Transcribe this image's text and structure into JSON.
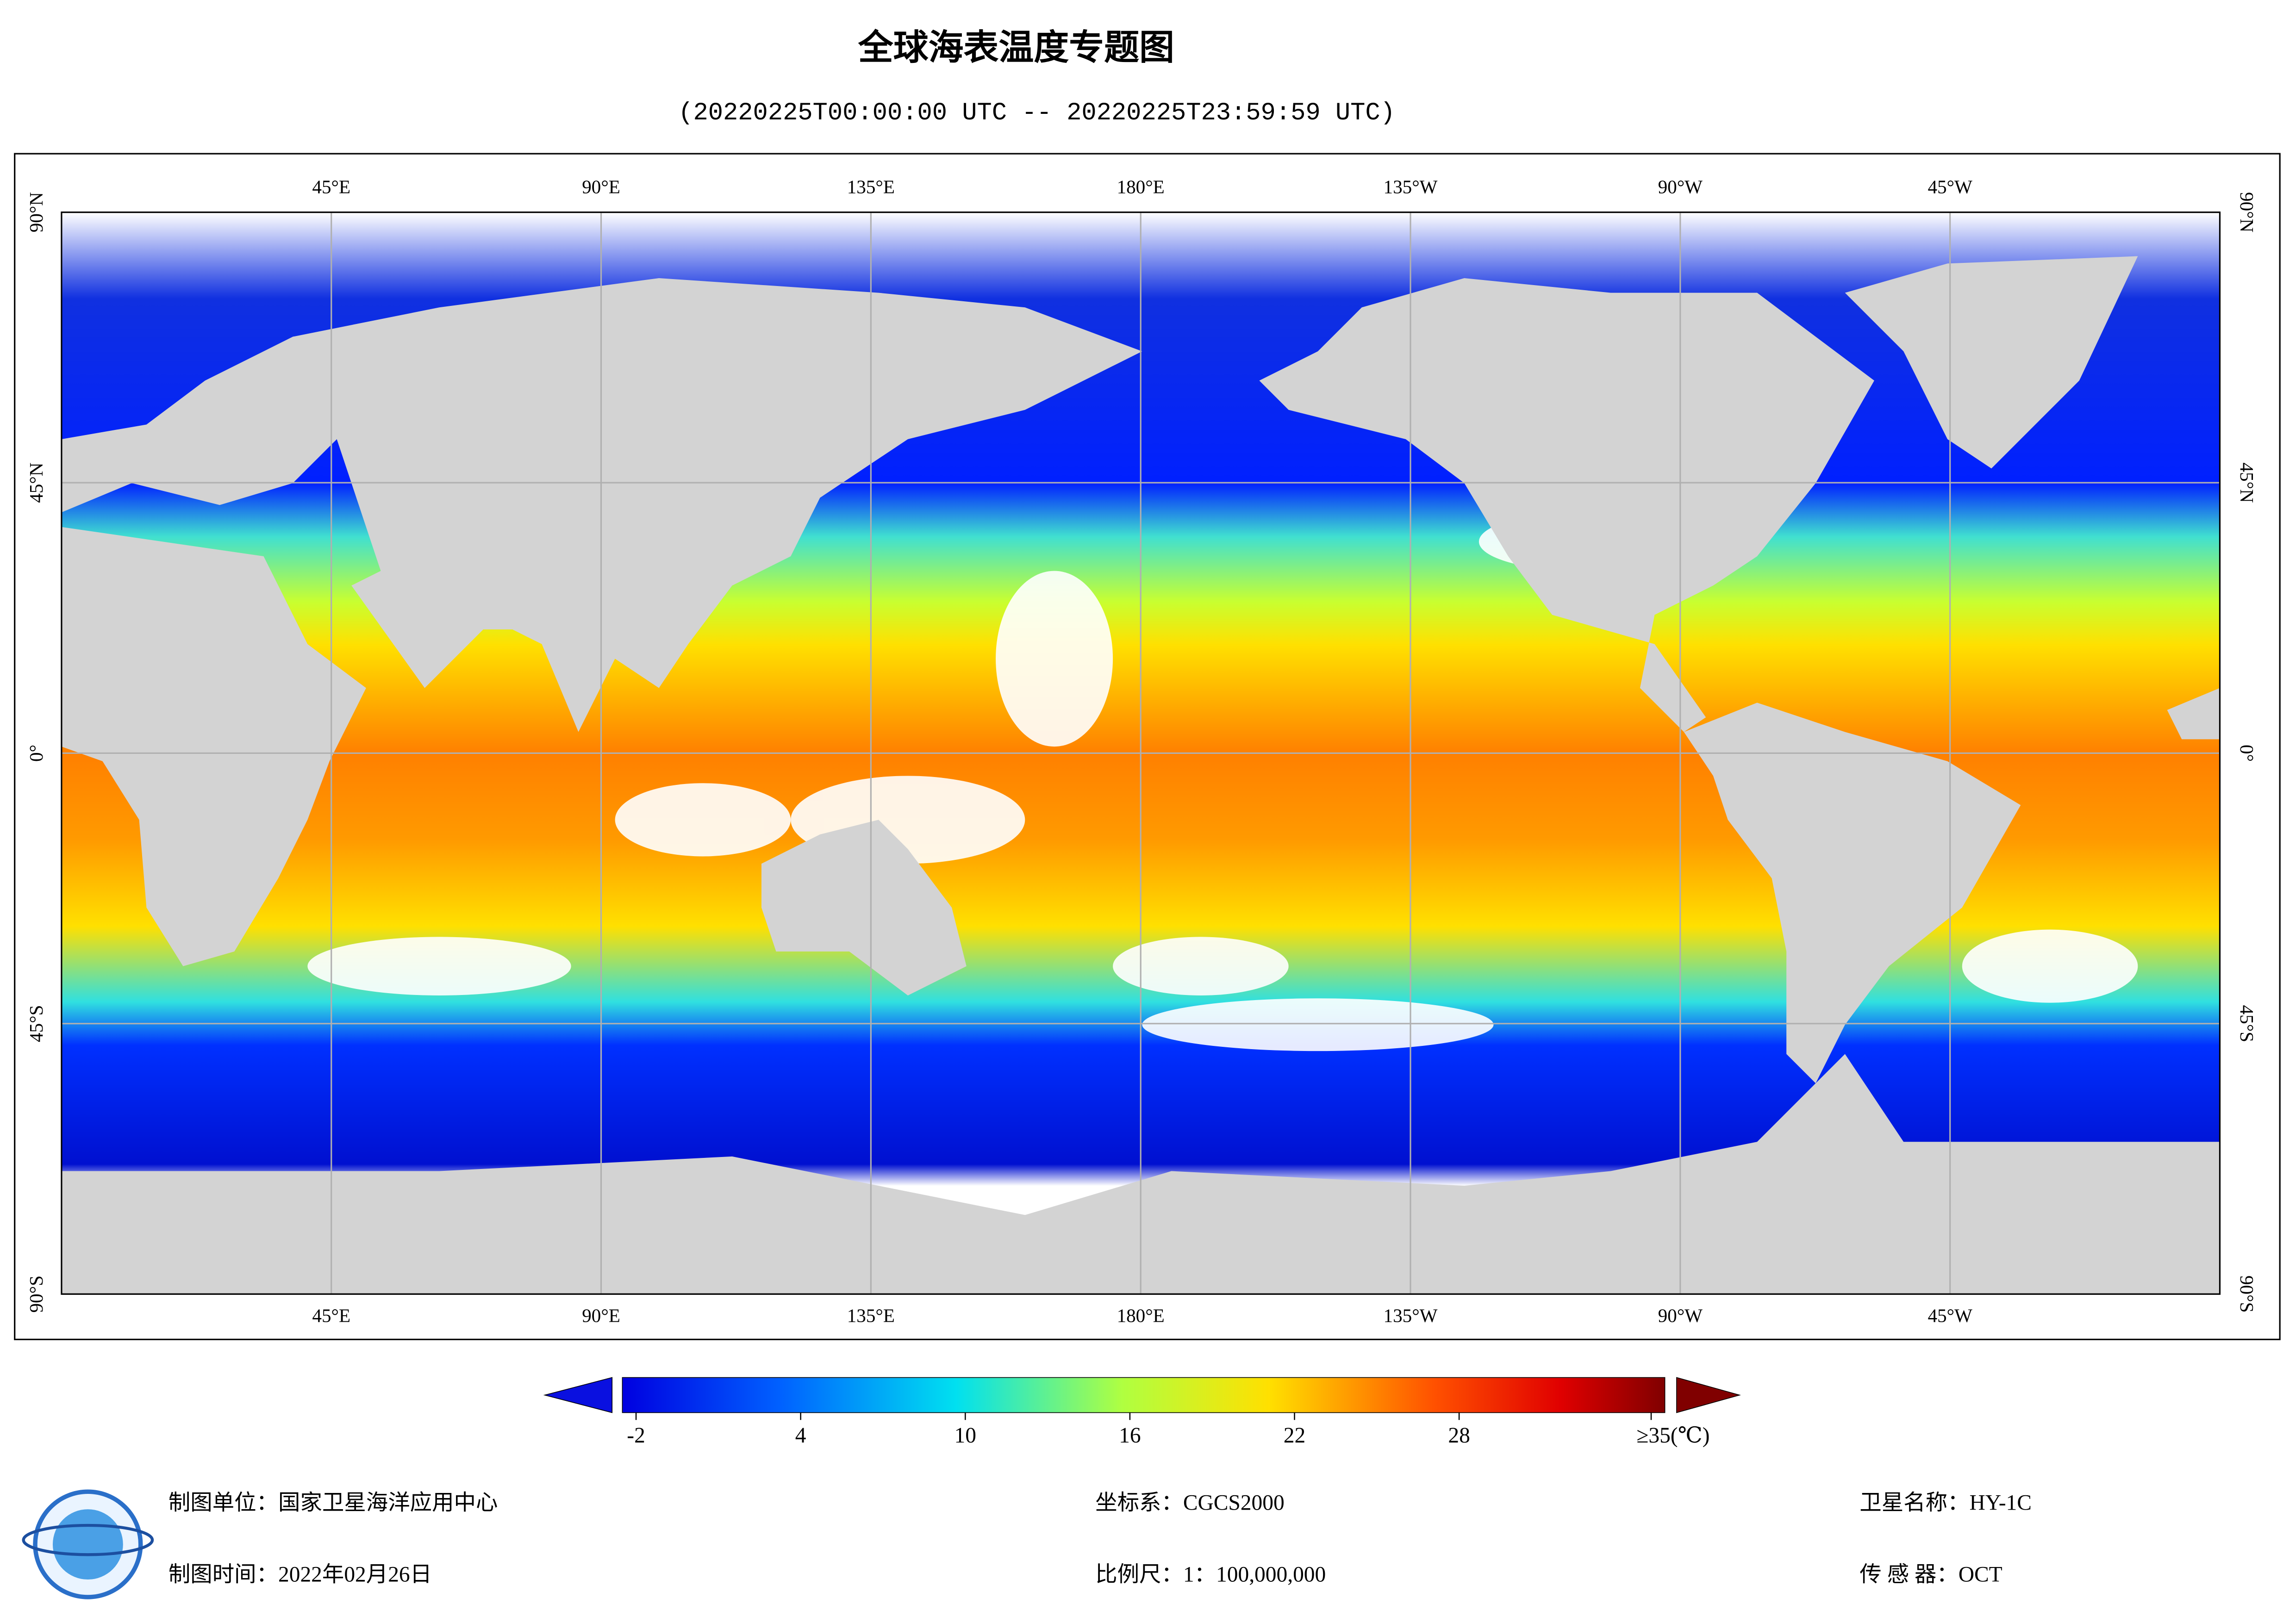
{
  "title": "全球海表温度专题图",
  "subtitle": "(20220225T00:00:00 UTC -- 20220225T23:59:59 UTC)",
  "map": {
    "lon_range": [
      0,
      360
    ],
    "lat_range": [
      -90,
      90
    ],
    "lon_ticks": [
      {
        "value": 45,
        "label": "45°E"
      },
      {
        "value": 90,
        "label": "90°E"
      },
      {
        "value": 135,
        "label": "135°E"
      },
      {
        "value": 180,
        "label": "180°E"
      },
      {
        "value": 225,
        "label": "135°W"
      },
      {
        "value": 270,
        "label": "90°W"
      },
      {
        "value": 315,
        "label": "45°W"
      }
    ],
    "lat_ticks": [
      {
        "value": 90,
        "label": "90°N"
      },
      {
        "value": 45,
        "label": "45°N"
      },
      {
        "value": 0,
        "label": "0°"
      },
      {
        "value": -45,
        "label": "45°S"
      },
      {
        "value": -90,
        "label": "90°S"
      }
    ]
  },
  "colorbar": {
    "range": [
      -2.5,
      35.5
    ],
    "ticks": [
      -2,
      4,
      10,
      16,
      22,
      28,
      {
        "value": 35,
        "label": "≥35(℃)"
      }
    ]
  },
  "footer": {
    "unit": "制图单位：国家卫星海洋应用中心",
    "time": "制图时间：2022年02月26日",
    "crs": "坐标系：CGCS2000",
    "scale": "比例尺：1：100,000,000",
    "satellite": "卫星名称：HY-1C",
    "sensor": "传 感 器：OCT"
  }
}
